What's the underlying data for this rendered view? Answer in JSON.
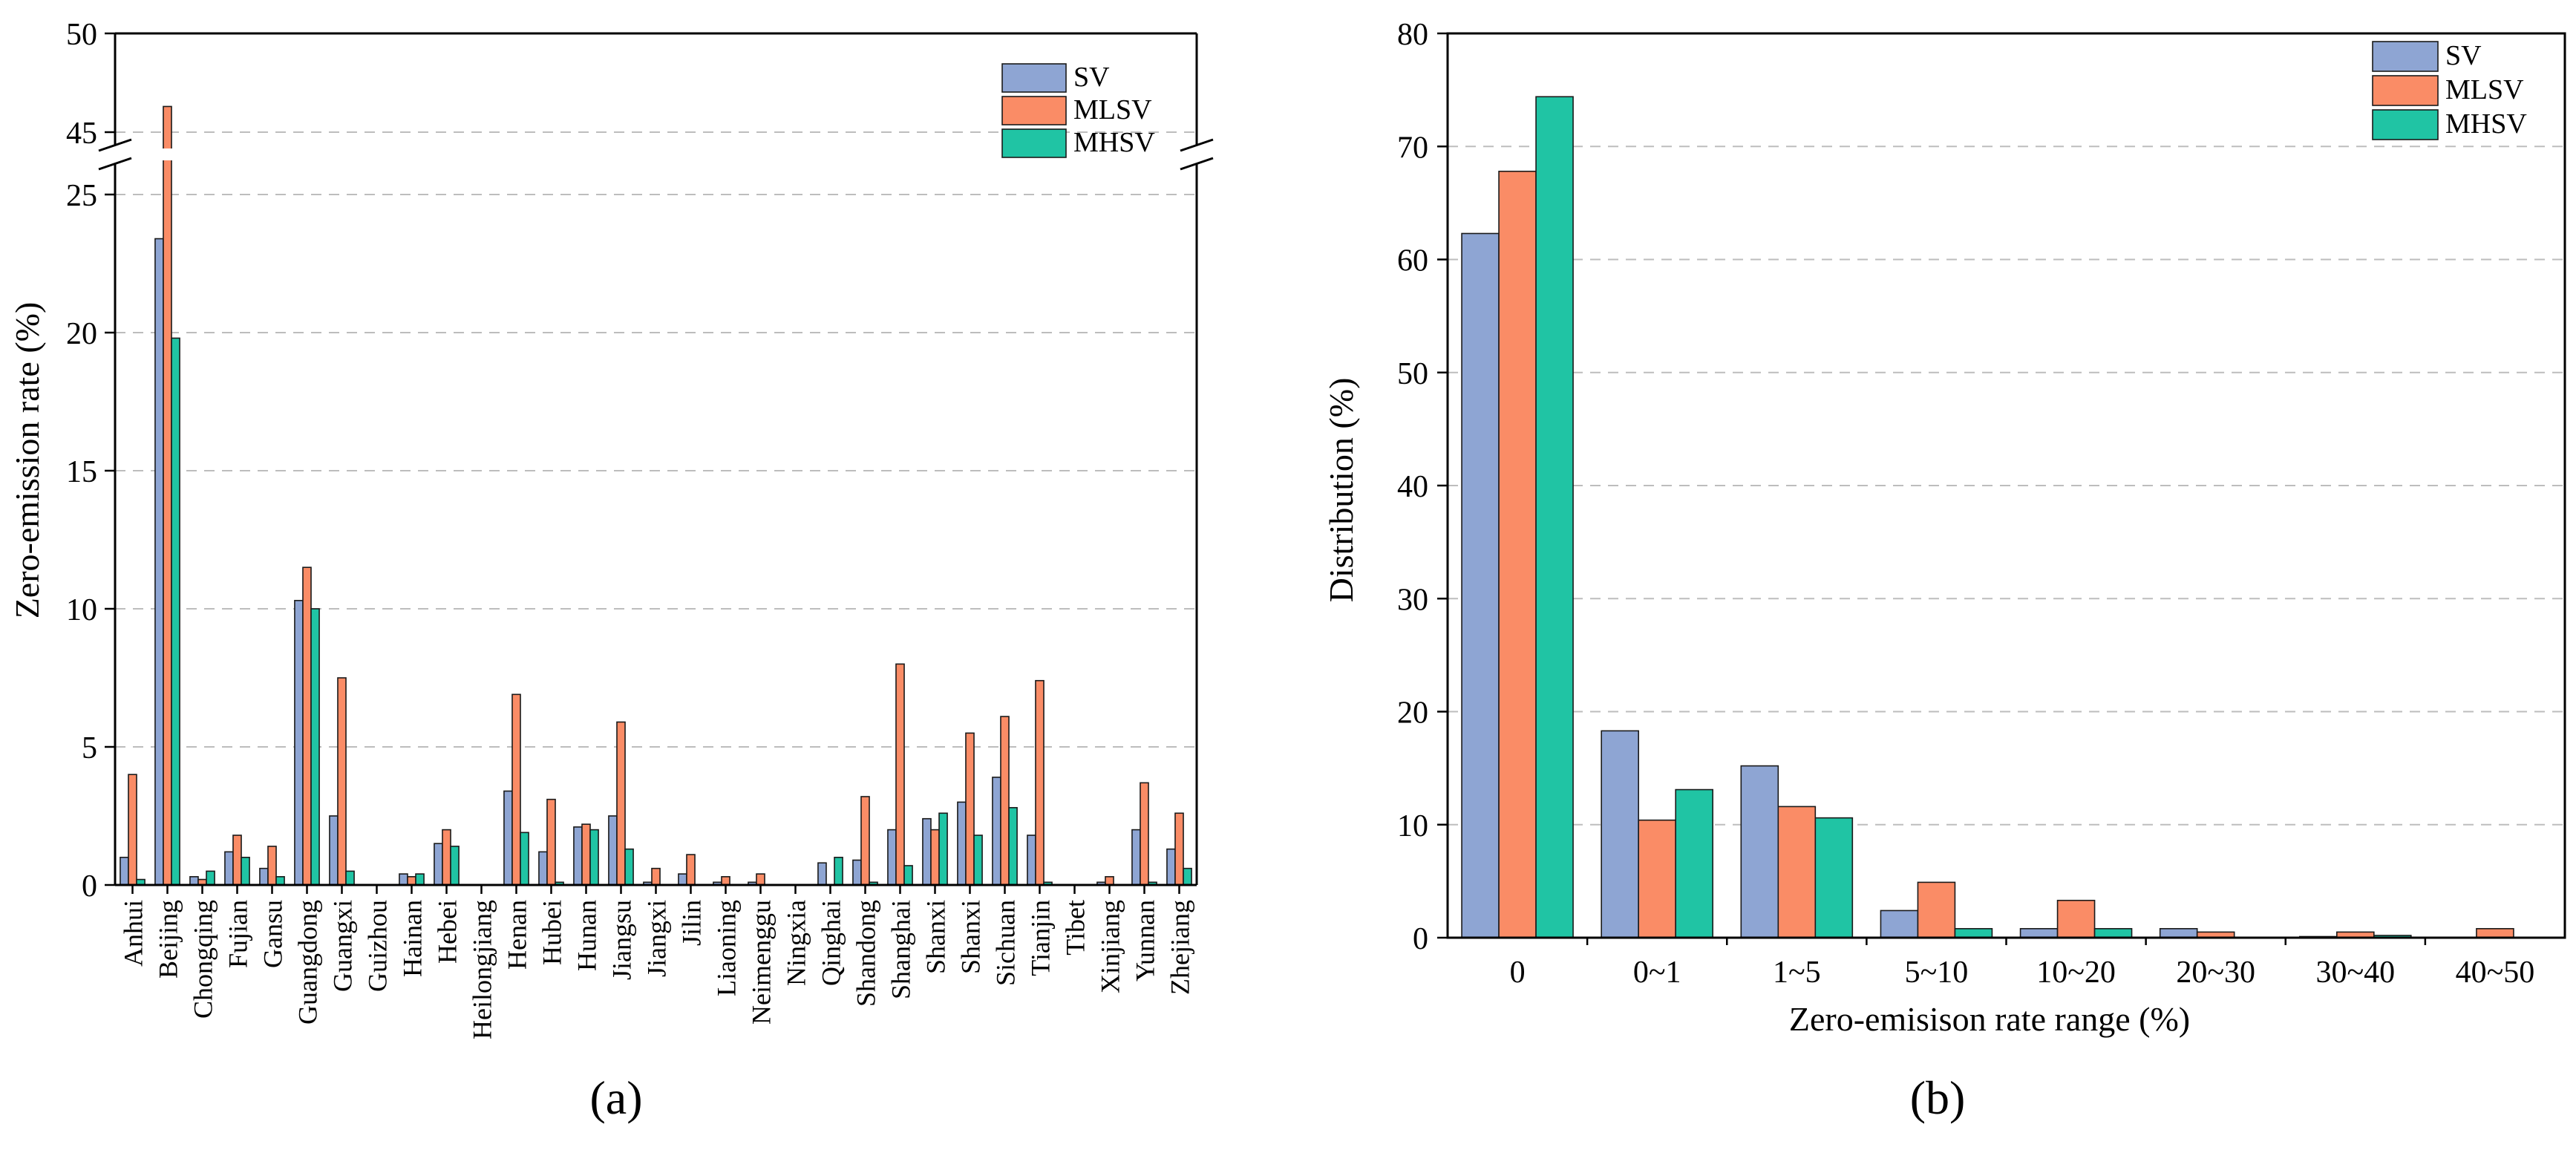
{
  "colors": {
    "SV": "#8EA5D3",
    "MLSV": "#FA8C66",
    "MHSV": "#20C4A4"
  },
  "chart_data": [
    {
      "id": "a",
      "panel_label": "(a)",
      "type": "bar",
      "xlabel": "",
      "ylabel": "Zero-emission rate (%)",
      "ylim": [
        0,
        50
      ],
      "axis_break": [
        26,
        43
      ],
      "yticks": [
        "0",
        "5",
        "10",
        "15",
        "20",
        "25",
        "45",
        "50"
      ],
      "legend": [
        "SV",
        "MLSV",
        "MHSV"
      ],
      "legend_position": "top-right",
      "grid": true,
      "categories": [
        "Anhui",
        "Beijing",
        "Chongqing",
        "Fujian",
        "Gansu",
        "Guangdong",
        "Guangxi",
        "Guizhou",
        "Hainan",
        "Hebei",
        "Heilongjiang",
        "Henan",
        "Hubei",
        "Hunan",
        "Jiangsu",
        "Jiangxi",
        "Jilin",
        "Liaoning",
        "Neimenggu",
        "Ningxia",
        "Qinghai",
        "Shandong",
        "Shanghai",
        "Shanxi",
        "Shanxi",
        "Sichuan",
        "Tianjin",
        "Tibet",
        "Xinjiang",
        "Yunnan",
        "Zhejiang"
      ],
      "series": [
        {
          "name": "SV",
          "values": [
            1.0,
            23.4,
            0.3,
            1.2,
            0.6,
            10.3,
            2.5,
            0,
            0.4,
            1.5,
            0,
            3.4,
            1.2,
            2.1,
            2.5,
            0.1,
            0.4,
            0.1,
            0.1,
            0,
            0.8,
            0.9,
            2.0,
            2.4,
            3.0,
            3.9,
            1.8,
            0,
            0.1,
            2.0,
            1.3
          ]
        },
        {
          "name": "MLSV",
          "values": [
            4.0,
            46.3,
            0.2,
            1.8,
            1.4,
            11.5,
            7.5,
            0,
            0.3,
            2.0,
            0,
            6.9,
            3.1,
            2.2,
            5.9,
            0.6,
            1.1,
            0.3,
            0.4,
            0,
            0,
            3.2,
            8.0,
            2.0,
            5.5,
            6.1,
            7.4,
            0,
            0.3,
            3.7,
            2.6
          ]
        },
        {
          "name": "MHSV",
          "values": [
            0.2,
            19.8,
            0.5,
            1.0,
            0.3,
            10.0,
            0.5,
            0,
            0.4,
            1.4,
            0,
            1.9,
            0.1,
            2.0,
            1.3,
            0,
            0,
            0,
            0,
            0,
            1.0,
            0.1,
            0.7,
            2.6,
            1.8,
            2.8,
            0.1,
            0,
            0,
            0.1,
            0.6
          ]
        }
      ]
    },
    {
      "id": "b",
      "panel_label": "(b)",
      "type": "bar",
      "xlabel": "Zero-emisison rate range (%)",
      "ylabel": "Distribution (%)",
      "ylim": [
        0,
        80
      ],
      "yticks": [
        "0",
        "10",
        "20",
        "30",
        "40",
        "50",
        "60",
        "70",
        "80"
      ],
      "legend": [
        "SV",
        "MLSV",
        "MHSV"
      ],
      "legend_position": "top-right",
      "grid": true,
      "categories": [
        "0",
        "0~1",
        "1~5",
        "5~10",
        "10~20",
        "20~30",
        "30~40",
        "40~50"
      ],
      "series": [
        {
          "name": "SV",
          "values": [
            62.3,
            18.3,
            15.2,
            2.4,
            0.8,
            0.8,
            0.1,
            0
          ]
        },
        {
          "name": "MLSV",
          "values": [
            67.8,
            10.4,
            11.6,
            4.9,
            3.3,
            0.5,
            0.5,
            0.8
          ]
        },
        {
          "name": "MHSV",
          "values": [
            74.4,
            13.1,
            10.6,
            0.8,
            0.8,
            0,
            0.2,
            0
          ]
        }
      ]
    }
  ]
}
